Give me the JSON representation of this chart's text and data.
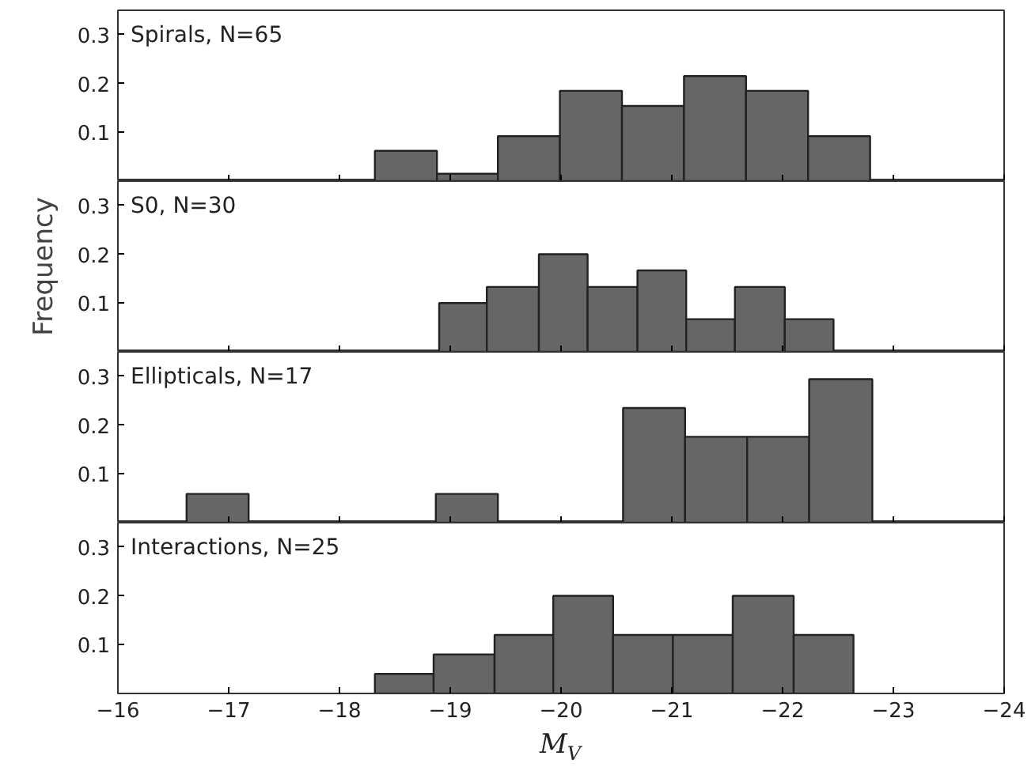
{
  "chart_data": [
    {
      "type": "histogram",
      "title": "Spirals, N=65",
      "color": "#666666",
      "bins": [
        -18.32,
        -18.88,
        -19.43,
        -19.99,
        -20.55,
        -21.11,
        -21.67,
        -22.23,
        -22.79
      ],
      "values": [
        0.062,
        0.015,
        0.092,
        0.185,
        0.154,
        0.215,
        0.185,
        0.092
      ],
      "xlim": [
        -16,
        -24
      ],
      "xticks": [
        -16,
        -17,
        -18,
        -19,
        -20,
        -21,
        -22,
        -23,
        -24
      ],
      "ylim": [
        0,
        0.35
      ],
      "yticks": [
        0.1,
        0.2,
        0.3
      ],
      "tick_labels": "y"
    },
    {
      "type": "histogram",
      "title": "S0, N=30",
      "ylabel": "Frequency",
      "color": "#666666",
      "bins": [
        -18.9,
        -19.33,
        -19.8,
        -20.24,
        -20.69,
        -21.13,
        -21.57,
        -22.02,
        -22.46
      ],
      "values": [
        0.1,
        0.133,
        0.2,
        0.133,
        0.167,
        0.067,
        0.133,
        0.067
      ],
      "xlim": [
        -16,
        -24
      ],
      "xticks": [
        -16,
        -17,
        -18,
        -19,
        -20,
        -21,
        -22,
        -23,
        -24
      ],
      "ylim": [
        0,
        0.35
      ],
      "yticks": [
        0.1,
        0.2,
        0.3
      ],
      "tick_labels": "y"
    },
    {
      "type": "histogram",
      "title": "Ellipticals, N=17",
      "color": "#666666",
      "bins": [
        -16.62,
        -17.18,
        -18.87,
        -19.43,
        -20.56,
        -21.12,
        -21.68,
        -22.24,
        -22.81
      ],
      "values": [
        0.059,
        0,
        0.059,
        0,
        0.235,
        0.176,
        0.176,
        0.294
      ],
      "xlim": [
        -16,
        -24
      ],
      "xticks": [
        -16,
        -17,
        -18,
        -19,
        -20,
        -21,
        -22,
        -23,
        -24
      ],
      "ylim": [
        0,
        0.35
      ],
      "yticks": [
        0.1,
        0.2,
        0.3
      ],
      "tick_labels": "y"
    },
    {
      "type": "histogram",
      "title": "Interactions, N=25",
      "xlabel": "M$_{V}$",
      "color": "#666666",
      "bins": [
        -18.32,
        -18.85,
        -19.4,
        -19.93,
        -20.47,
        -21.01,
        -21.55,
        -22.1,
        -22.64
      ],
      "values": [
        0.04,
        0.08,
        0.12,
        0.2,
        0.12,
        0.12,
        0.2,
        0.12
      ],
      "xlim": [
        -16,
        -24
      ],
      "xticks": [
        -16,
        -17,
        -18,
        -19,
        -20,
        -21,
        -22,
        -23,
        -24
      ],
      "ylim": [
        0,
        0.35
      ],
      "yticks": [
        0.1,
        0.2,
        0.3
      ]
    }
  ]
}
